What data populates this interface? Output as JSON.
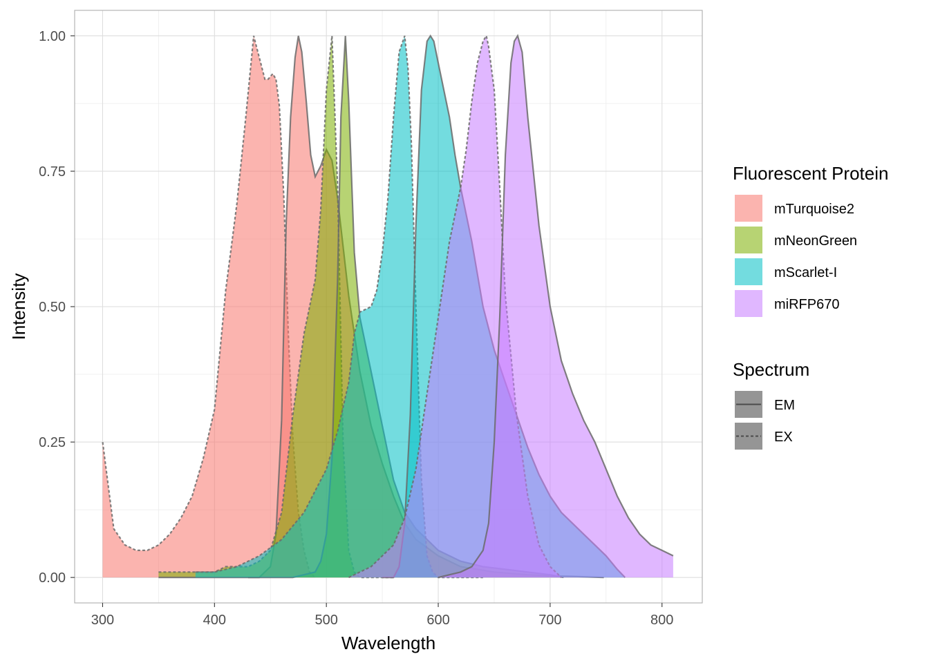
{
  "chart_data": {
    "type": "area",
    "xlabel": "Wavelength",
    "ylabel": "Intensity",
    "xlim": [
      275,
      836
    ],
    "ylim": [
      -0.047,
      1.047
    ],
    "x_ticks": [
      300,
      400,
      500,
      600,
      700,
      800
    ],
    "y_ticks": [
      0,
      0.25,
      0.5,
      0.75,
      1.0
    ],
    "x_tick_labels": [
      "300",
      "400",
      "500",
      "600",
      "700",
      "800"
    ],
    "y_tick_labels": [
      "0.00",
      "0.25",
      "0.50",
      "0.75",
      "1.00"
    ],
    "grid": true,
    "legend_position": "right",
    "fill_legend": {
      "title": "Fluorescent Protein",
      "items": [
        {
          "label": "mTurquoise2",
          "color": "#F8766D"
        },
        {
          "label": "mNeonGreen",
          "color": "#7CAE00"
        },
        {
          "label": "mScarlet-I",
          "color": "#00BFC4"
        },
        {
          "label": "miRFP670",
          "color": "#C77CFF"
        }
      ]
    },
    "linetype_legend": {
      "title": "Spectrum",
      "items": [
        {
          "label": "EM",
          "linetype": "solid"
        },
        {
          "label": "EX",
          "linetype": "dashed"
        }
      ]
    },
    "series": [
      {
        "protein": "mTurquoise2",
        "spectrum": "EX",
        "color": "#F8766D",
        "x": [
          300,
          310,
          320,
          330,
          340,
          350,
          360,
          370,
          380,
          390,
          400,
          410,
          420,
          428,
          435,
          440,
          445,
          448,
          452,
          455,
          458,
          462,
          466,
          470,
          475,
          480,
          485,
          490
        ],
        "y": [
          0.25,
          0.09,
          0.06,
          0.05,
          0.05,
          0.06,
          0.08,
          0.11,
          0.15,
          0.22,
          0.31,
          0.53,
          0.69,
          0.85,
          1.0,
          0.96,
          0.92,
          0.92,
          0.93,
          0.92,
          0.87,
          0.7,
          0.45,
          0.26,
          0.12,
          0.05,
          0.01,
          0.0
        ]
      },
      {
        "protein": "mTurquoise2",
        "spectrum": "EM",
        "color": "#F8766D",
        "x": [
          430,
          440,
          450,
          455,
          460,
          464,
          468,
          472,
          475,
          478,
          482,
          486,
          490,
          495,
          500,
          505,
          510,
          520,
          530,
          540,
          550,
          560,
          570,
          580,
          600,
          620,
          650,
          680,
          700,
          720,
          748
        ],
        "y": [
          0.0,
          0.0,
          0.02,
          0.08,
          0.29,
          0.65,
          0.85,
          0.96,
          1.0,
          0.97,
          0.88,
          0.78,
          0.74,
          0.76,
          0.79,
          0.77,
          0.7,
          0.52,
          0.38,
          0.28,
          0.21,
          0.15,
          0.1,
          0.07,
          0.04,
          0.02,
          0.01,
          0.005,
          0.003,
          0.002,
          0.0
        ]
      },
      {
        "protein": "mNeonGreen",
        "spectrum": "EX",
        "color": "#7CAE00",
        "x": [
          350,
          360,
          370,
          380,
          390,
          400,
          410,
          420,
          430,
          440,
          450,
          460,
          470,
          480,
          490,
          495,
          500,
          505,
          510,
          515,
          520,
          525,
          530,
          535,
          540,
          545,
          550,
          555,
          560
        ],
        "y": [
          0.01,
          0.01,
          0.01,
          0.01,
          0.01,
          0.01,
          0.02,
          0.02,
          0.02,
          0.03,
          0.05,
          0.12,
          0.3,
          0.45,
          0.55,
          0.68,
          0.9,
          1.0,
          0.72,
          0.25,
          0.05,
          0.01,
          0.0,
          0.0,
          0.0,
          0.0,
          0.0,
          0.0,
          0.0
        ]
      },
      {
        "protein": "mNeonGreen",
        "spectrum": "EM",
        "color": "#7CAE00",
        "x": [
          350,
          400,
          450,
          470,
          480,
          490,
          495,
          500,
          505,
          510,
          513,
          517,
          520,
          525,
          530,
          535,
          540,
          545,
          550,
          555,
          560,
          570,
          580,
          590,
          600,
          620,
          640,
          660,
          680,
          700,
          712
        ],
        "y": [
          0.0,
          0.0,
          0.0,
          0.0,
          0.005,
          0.01,
          0.03,
          0.08,
          0.22,
          0.55,
          0.85,
          1.0,
          0.88,
          0.6,
          0.48,
          0.43,
          0.38,
          0.33,
          0.28,
          0.23,
          0.18,
          0.12,
          0.09,
          0.07,
          0.05,
          0.03,
          0.02,
          0.015,
          0.01,
          0.005,
          0.0
        ]
      },
      {
        "protein": "mScarlet-I",
        "spectrum": "EX",
        "color": "#00BFC4",
        "x": [
          383,
          400,
          420,
          440,
          460,
          480,
          500,
          510,
          520,
          525,
          530,
          540,
          545,
          550,
          555,
          560,
          565,
          570,
          573,
          576,
          580,
          585,
          590,
          595,
          600,
          610,
          620,
          640
        ],
        "y": [
          0.01,
          0.01,
          0.02,
          0.04,
          0.07,
          0.12,
          0.2,
          0.27,
          0.36,
          0.45,
          0.49,
          0.5,
          0.53,
          0.6,
          0.7,
          0.85,
          0.97,
          1.0,
          0.94,
          0.8,
          0.5,
          0.18,
          0.04,
          0.01,
          0.0,
          0.0,
          0.0,
          0.0
        ]
      },
      {
        "protein": "mScarlet-I",
        "spectrum": "EM",
        "color": "#00BFC4",
        "x": [
          550,
          560,
          565,
          570,
          575,
          580,
          585,
          590,
          593,
          596,
          600,
          605,
          610,
          615,
          620,
          630,
          640,
          650,
          660,
          670,
          680,
          690,
          700,
          710,
          720,
          730,
          740,
          750,
          760,
          767
        ],
        "y": [
          0.0,
          0.0,
          0.02,
          0.1,
          0.3,
          0.65,
          0.9,
          0.99,
          1.0,
          0.99,
          0.95,
          0.9,
          0.85,
          0.78,
          0.72,
          0.62,
          0.5,
          0.42,
          0.36,
          0.3,
          0.24,
          0.19,
          0.15,
          0.12,
          0.1,
          0.08,
          0.06,
          0.04,
          0.015,
          0.0
        ]
      },
      {
        "protein": "miRFP670",
        "spectrum": "EX",
        "color": "#C77CFF",
        "x": [
          520,
          530,
          540,
          550,
          560,
          570,
          580,
          590,
          600,
          610,
          620,
          625,
          630,
          635,
          640,
          643,
          645,
          650,
          655,
          660,
          670,
          680,
          690,
          700,
          710
        ],
        "y": [
          0.0,
          0.01,
          0.02,
          0.04,
          0.06,
          0.11,
          0.2,
          0.34,
          0.48,
          0.62,
          0.72,
          0.79,
          0.88,
          0.95,
          0.99,
          1.0,
          0.98,
          0.9,
          0.72,
          0.52,
          0.3,
          0.15,
          0.06,
          0.02,
          0.0
        ]
      },
      {
        "protein": "miRFP670",
        "spectrum": "EM",
        "color": "#C77CFF",
        "x": [
          600,
          620,
          630,
          640,
          645,
          650,
          655,
          660,
          665,
          668,
          671,
          675,
          680,
          690,
          700,
          710,
          720,
          730,
          740,
          750,
          760,
          770,
          780,
          790,
          800,
          810
        ],
        "y": [
          0.0,
          0.01,
          0.02,
          0.05,
          0.1,
          0.25,
          0.48,
          0.78,
          0.95,
          0.99,
          1.0,
          0.97,
          0.85,
          0.65,
          0.5,
          0.4,
          0.34,
          0.29,
          0.25,
          0.2,
          0.15,
          0.11,
          0.08,
          0.06,
          0.05,
          0.04
        ]
      }
    ]
  }
}
